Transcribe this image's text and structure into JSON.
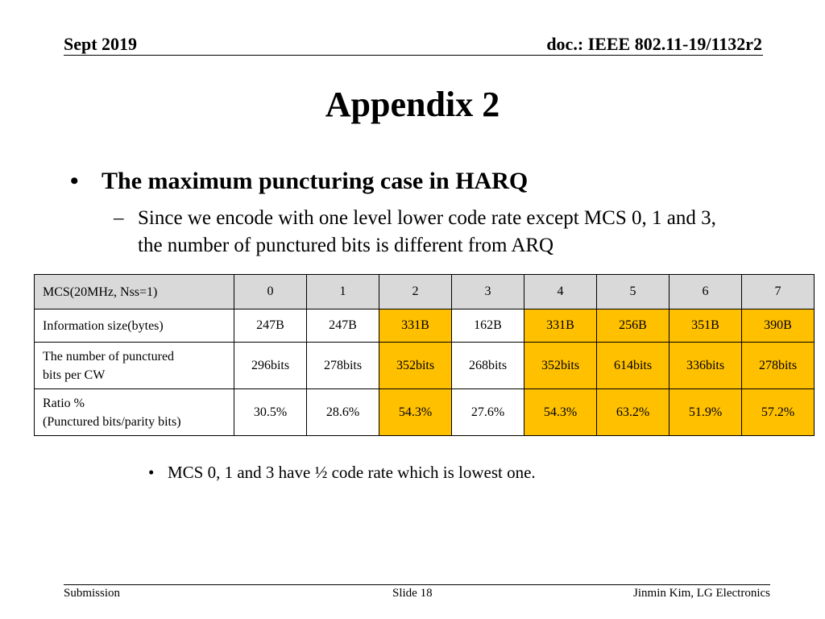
{
  "header": {
    "left": "Sept 2019",
    "right": "doc.: IEEE 802.11-19/1132r2"
  },
  "title": "Appendix 2",
  "bullet1": "The maximum puncturing case in HARQ",
  "bullet2": "Since we encode with one level lower code rate except MCS 0, 1 and 3, the number of punctured bits is different from ARQ",
  "table": {
    "rows": [
      {
        "label": [
          "MCS(20MHz, Nss=1)"
        ],
        "cells": [
          "0",
          "1",
          "2",
          "3",
          "4",
          "5",
          "6",
          "7"
        ]
      },
      {
        "label": [
          "Information size(bytes)"
        ],
        "cells": [
          "247B",
          "247B",
          "331B",
          "162B",
          "331B",
          "256B",
          "351B",
          "390B"
        ]
      },
      {
        "label": [
          "The number of punctured",
          "bits per CW"
        ],
        "cells": [
          "296bits",
          "278bits",
          "352bits",
          "268bits",
          "352bits",
          "614bits",
          "336bits",
          "278bits"
        ]
      },
      {
        "label": [
          "Ratio %",
          "(Punctured bits/parity bits)"
        ],
        "cells": [
          "30.5%",
          "28.6%",
          "54.3%",
          "27.6%",
          "54.3%",
          "63.2%",
          "51.9%",
          "57.2%"
        ]
      }
    ],
    "highlight_columns": [
      2,
      4,
      5,
      6,
      7
    ],
    "colors": {
      "header_bg": "#d9d9d9",
      "highlight": "#ffc000"
    }
  },
  "note": "MCS 0, 1 and 3 have ½ code rate which is lowest one.",
  "footer": {
    "left": "Submission",
    "center": "Slide 18",
    "right": "Jinmin Kim, LG Electronics"
  }
}
